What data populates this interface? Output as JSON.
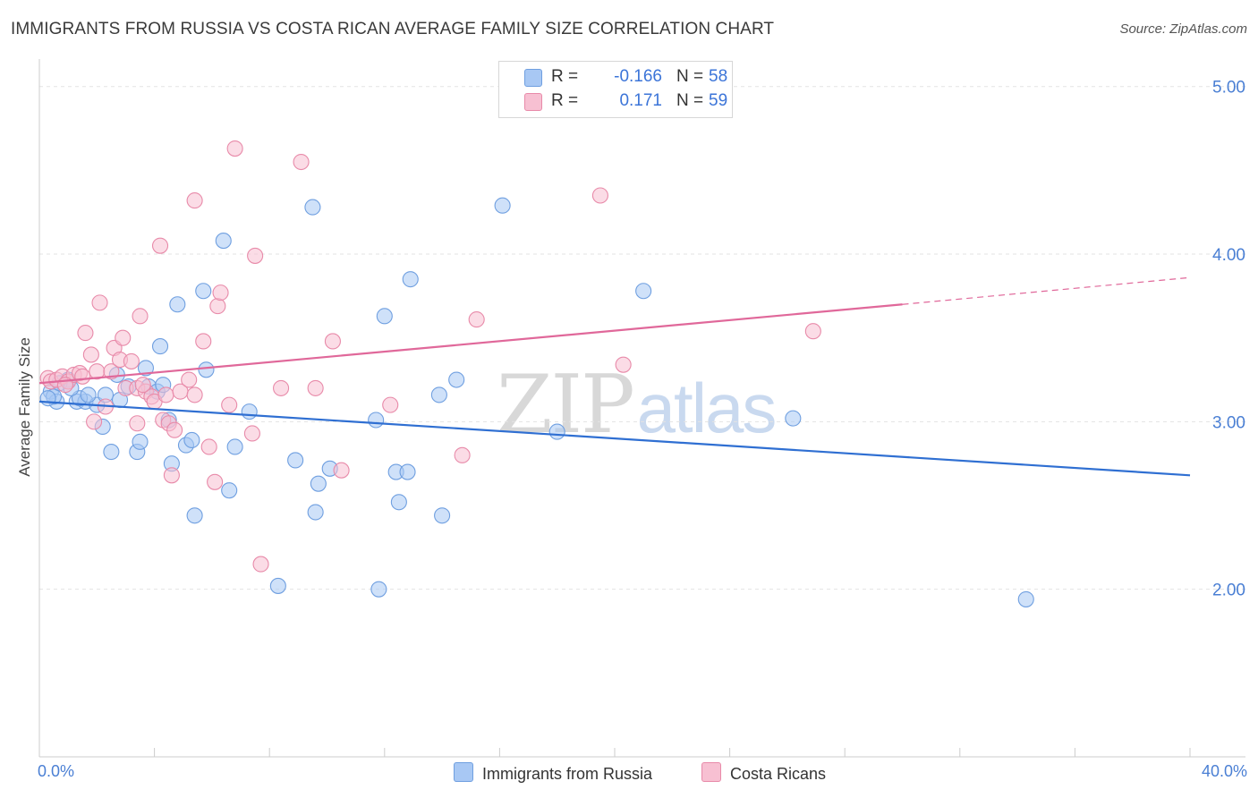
{
  "header": {
    "title": "IMMIGRANTS FROM RUSSIA VS COSTA RICAN AVERAGE FAMILY SIZE CORRELATION CHART",
    "source": "Source: ZipAtlas.com"
  },
  "watermark": {
    "zip": "ZIP",
    "atlas": "atlas"
  },
  "stats": {
    "rows": [
      {
        "r_label": "R =",
        "r_value": "-0.166",
        "n_label": "N =",
        "n_value": "58",
        "color": "#a8c8f4",
        "border": "#6f9fe0"
      },
      {
        "r_label": "R =",
        "r_value": "0.171",
        "n_label": "N =",
        "n_value": "59",
        "color": "#f7c0d2",
        "border": "#e88aa9"
      }
    ]
  },
  "legend": {
    "items": [
      {
        "label": "Immigrants from Russia",
        "color": "#a8c8f4",
        "border": "#6f9fe0"
      },
      {
        "label": "Costa Ricans",
        "color": "#f7c0d2",
        "border": "#e88aa9"
      }
    ]
  },
  "chart_data": {
    "type": "scatter",
    "title": "IMMIGRANTS FROM RUSSIA VS COSTA RICAN AVERAGE FAMILY SIZE CORRELATION CHART",
    "xlabel": "",
    "ylabel": "Average Family Size",
    "x_tick_labels": [
      "0.0%",
      "40.0%"
    ],
    "y_tick_labels": [
      "2.00",
      "3.00",
      "4.00",
      "5.00"
    ],
    "xlim": [
      0,
      40
    ],
    "ylim": [
      1.0,
      5.1
    ],
    "grid": true,
    "legend_position": "bottom",
    "series": [
      {
        "name": "Immigrants from Russia",
        "color": "#6f9fe0",
        "fill": "#a8c8f4",
        "trend": {
          "x": [
            0.0,
            40.0
          ],
          "y": [
            3.12,
            2.68
          ]
        },
        "points": [
          [
            0.4,
            3.18
          ],
          [
            0.6,
            3.12
          ],
          [
            0.5,
            3.15
          ],
          [
            0.3,
            3.14
          ],
          [
            1.0,
            3.25
          ],
          [
            1.3,
            3.12
          ],
          [
            1.6,
            3.12
          ],
          [
            1.4,
            3.14
          ],
          [
            2.0,
            3.1
          ],
          [
            1.7,
            3.16
          ],
          [
            2.3,
            3.16
          ],
          [
            2.2,
            2.97
          ],
          [
            2.5,
            2.82
          ],
          [
            2.7,
            3.28
          ],
          [
            2.8,
            3.13
          ],
          [
            3.1,
            3.21
          ],
          [
            3.4,
            2.82
          ],
          [
            3.5,
            2.88
          ],
          [
            3.7,
            3.32
          ],
          [
            3.8,
            3.21
          ],
          [
            4.1,
            3.18
          ],
          [
            4.2,
            3.45
          ],
          [
            4.3,
            3.22
          ],
          [
            4.5,
            3.01
          ],
          [
            4.6,
            2.75
          ],
          [
            4.8,
            3.7
          ],
          [
            5.1,
            2.86
          ],
          [
            5.3,
            2.89
          ],
          [
            5.4,
            2.44
          ],
          [
            5.7,
            3.78
          ],
          [
            5.8,
            3.31
          ],
          [
            6.4,
            4.08
          ],
          [
            6.6,
            2.59
          ],
          [
            6.8,
            2.85
          ],
          [
            7.3,
            3.06
          ],
          [
            8.3,
            2.02
          ],
          [
            8.9,
            2.77
          ],
          [
            9.5,
            4.28
          ],
          [
            9.6,
            2.46
          ],
          [
            9.7,
            2.63
          ],
          [
            10.1,
            2.72
          ],
          [
            11.7,
            3.01
          ],
          [
            11.8,
            2.0
          ],
          [
            12.0,
            3.63
          ],
          [
            12.4,
            2.7
          ],
          [
            12.5,
            2.52
          ],
          [
            12.8,
            2.7
          ],
          [
            12.9,
            3.85
          ],
          [
            13.9,
            3.16
          ],
          [
            14.0,
            2.44
          ],
          [
            14.5,
            3.25
          ],
          [
            16.1,
            4.29
          ],
          [
            18.0,
            2.94
          ],
          [
            21.0,
            3.78
          ],
          [
            26.2,
            3.02
          ],
          [
            34.3,
            1.94
          ],
          [
            0.7,
            3.23
          ],
          [
            1.1,
            3.2
          ]
        ]
      },
      {
        "name": "Costa Ricans",
        "color": "#e88aa9",
        "fill": "#f7c0d2",
        "trend": {
          "x": [
            0.0,
            30.0
          ],
          "y": [
            3.23,
            3.7
          ]
        },
        "trend_dashed": {
          "x": [
            30.0,
            40.0
          ],
          "y": [
            3.7,
            3.86
          ]
        },
        "points": [
          [
            0.3,
            3.26
          ],
          [
            0.4,
            3.24
          ],
          [
            0.6,
            3.25
          ],
          [
            0.8,
            3.27
          ],
          [
            1.0,
            3.24
          ],
          [
            1.2,
            3.28
          ],
          [
            1.4,
            3.29
          ],
          [
            1.5,
            3.27
          ],
          [
            1.6,
            3.53
          ],
          [
            1.8,
            3.4
          ],
          [
            2.0,
            3.3
          ],
          [
            2.1,
            3.71
          ],
          [
            2.3,
            3.09
          ],
          [
            2.5,
            3.3
          ],
          [
            2.6,
            3.44
          ],
          [
            2.8,
            3.37
          ],
          [
            3.0,
            3.2
          ],
          [
            3.2,
            3.36
          ],
          [
            3.4,
            3.2
          ],
          [
            3.4,
            2.99
          ],
          [
            3.5,
            3.63
          ],
          [
            3.7,
            3.18
          ],
          [
            3.9,
            3.15
          ],
          [
            4.0,
            3.12
          ],
          [
            4.2,
            4.05
          ],
          [
            4.3,
            3.01
          ],
          [
            4.4,
            3.16
          ],
          [
            4.5,
            2.99
          ],
          [
            4.6,
            2.68
          ],
          [
            4.7,
            2.95
          ],
          [
            4.9,
            3.18
          ],
          [
            5.2,
            3.25
          ],
          [
            5.4,
            3.16
          ],
          [
            5.4,
            4.32
          ],
          [
            5.7,
            3.48
          ],
          [
            5.9,
            2.85
          ],
          [
            6.1,
            2.64
          ],
          [
            6.2,
            3.69
          ],
          [
            6.3,
            3.77
          ],
          [
            6.6,
            3.1
          ],
          [
            6.8,
            4.63
          ],
          [
            7.4,
            2.93
          ],
          [
            7.5,
            3.99
          ],
          [
            7.7,
            2.15
          ],
          [
            8.4,
            3.2
          ],
          [
            9.1,
            4.55
          ],
          [
            9.6,
            3.2
          ],
          [
            10.2,
            3.48
          ],
          [
            10.5,
            2.71
          ],
          [
            12.2,
            3.1
          ],
          [
            14.7,
            2.8
          ],
          [
            15.2,
            3.61
          ],
          [
            19.5,
            4.35
          ],
          [
            20.3,
            3.34
          ],
          [
            26.9,
            3.54
          ],
          [
            1.9,
            3.0
          ],
          [
            0.9,
            3.22
          ],
          [
            2.9,
            3.5
          ],
          [
            3.6,
            3.22
          ]
        ]
      }
    ]
  }
}
